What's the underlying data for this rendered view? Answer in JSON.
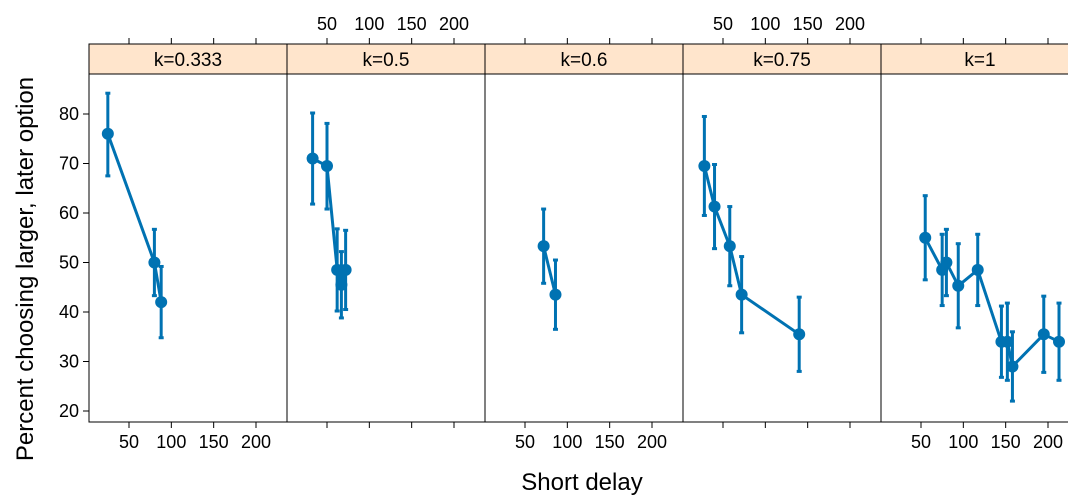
{
  "chart_data": {
    "type": "line",
    "xlabel": "Short delay",
    "ylabel": "Percent choosing larger, later option",
    "xlim": [
      10,
      216
    ],
    "ylim": [
      18,
      88
    ],
    "x_ticks": [
      50,
      100,
      150,
      200
    ],
    "y_ticks": [
      20,
      30,
      40,
      50,
      60,
      70,
      80
    ],
    "colors": {
      "series": "#0072b2",
      "strip": "#ffe5cc"
    },
    "error_bars": true,
    "panels": [
      {
        "label": "k=0.333",
        "points": [
          {
            "x": 25,
            "y": 76,
            "lo": 67.5,
            "hi": 84.2
          },
          {
            "x": 80,
            "y": 50,
            "lo": 43.3,
            "hi": 56.7
          },
          {
            "x": 88,
            "y": 42,
            "lo": 34.8,
            "hi": 49.2
          }
        ]
      },
      {
        "label": "k=0.5",
        "points": [
          {
            "x": 33,
            "y": 71,
            "lo": 61.8,
            "hi": 80.2
          },
          {
            "x": 50,
            "y": 69.5,
            "lo": 60.8,
            "hi": 78.1
          },
          {
            "x": 62,
            "y": 48.5,
            "lo": 40.2,
            "hi": 56.8
          },
          {
            "x": 67,
            "y": 45.5,
            "lo": 38.8,
            "hi": 52.2
          },
          {
            "x": 72,
            "y": 48.5,
            "lo": 40.5,
            "hi": 56.5
          }
        ]
      },
      {
        "label": "k=0.6",
        "points": [
          {
            "x": 72,
            "y": 53.3,
            "lo": 45.8,
            "hi": 60.8
          },
          {
            "x": 86,
            "y": 43.5,
            "lo": 36.5,
            "hi": 50.5
          }
        ]
      },
      {
        "label": "k=0.75",
        "points": [
          {
            "x": 28,
            "y": 69.5,
            "lo": 59.5,
            "hi": 79.5
          },
          {
            "x": 40,
            "y": 61.3,
            "lo": 52.8,
            "hi": 69.8
          },
          {
            "x": 58,
            "y": 53.3,
            "lo": 45.3,
            "hi": 61.3
          },
          {
            "x": 72,
            "y": 43.5,
            "lo": 35.8,
            "hi": 51.2
          },
          {
            "x": 140,
            "y": 35.5,
            "lo": 28.0,
            "hi": 43.0
          }
        ]
      },
      {
        "label": "k=1",
        "points": [
          {
            "x": 55,
            "y": 55,
            "lo": 46.5,
            "hi": 63.5
          },
          {
            "x": 75,
            "y": 48.5,
            "lo": 41.3,
            "hi": 55.7
          },
          {
            "x": 80,
            "y": 50,
            "lo": 43.3,
            "hi": 56.7
          },
          {
            "x": 94,
            "y": 45.3,
            "lo": 36.8,
            "hi": 53.8
          },
          {
            "x": 117,
            "y": 48.5,
            "lo": 41.3,
            "hi": 55.7
          },
          {
            "x": 145,
            "y": 34,
            "lo": 26.8,
            "hi": 41.2
          },
          {
            "x": 152,
            "y": 34,
            "lo": 26.2,
            "hi": 41.8
          },
          {
            "x": 158,
            "y": 29,
            "lo": 22.0,
            "hi": 36.0
          },
          {
            "x": 195,
            "y": 35.5,
            "lo": 27.8,
            "hi": 43.2
          },
          {
            "x": 213,
            "y": 34,
            "lo": 26.2,
            "hi": 41.8
          }
        ]
      }
    ]
  }
}
